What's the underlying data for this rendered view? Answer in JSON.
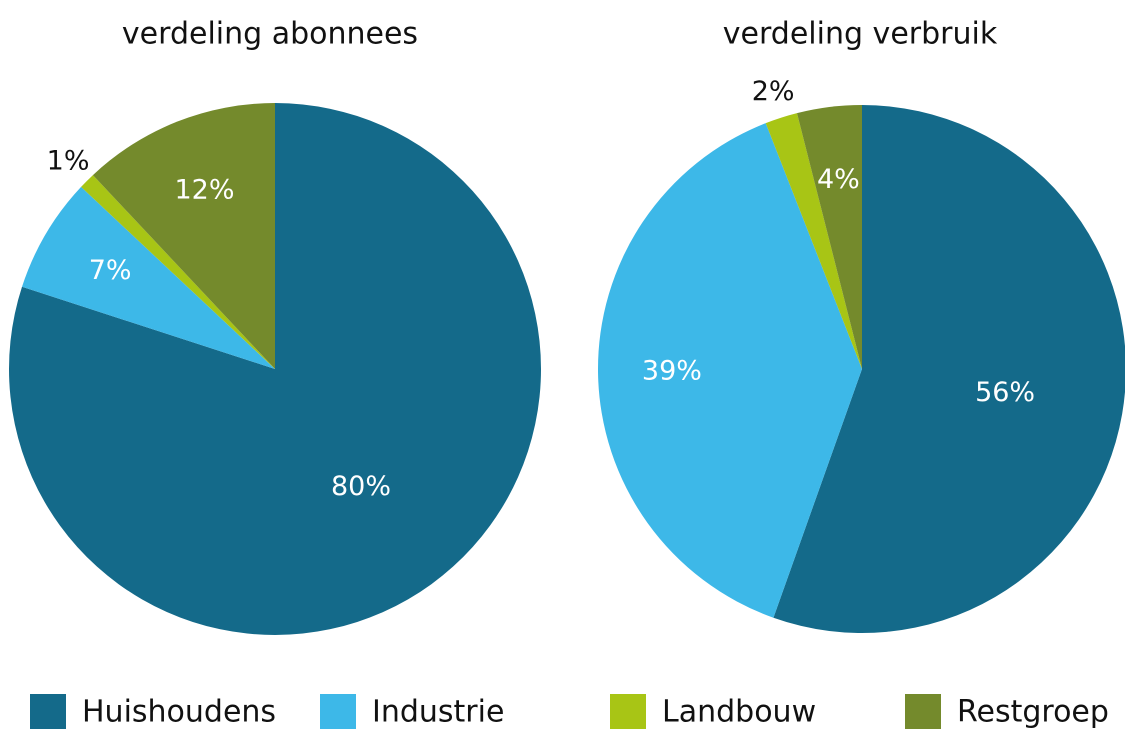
{
  "chart_data": [
    {
      "type": "pie",
      "title": "verdeling abonnees",
      "values": [
        80,
        7,
        1,
        12
      ],
      "value_labels": [
        "80%",
        "7%",
        "1%",
        "12%"
      ]
    },
    {
      "type": "pie",
      "title": "verdeling verbruik",
      "values": [
        56,
        39,
        2,
        4
      ],
      "value_labels": [
        "56%",
        "39%",
        "2%",
        "4%"
      ]
    }
  ],
  "legend": {
    "categories": [
      "Huishoudens",
      "Industrie",
      "Landbouw",
      "Restgroep"
    ],
    "colors": [
      "#146a8a",
      "#3db8e8",
      "#a8c515",
      "#748a2c"
    ]
  }
}
